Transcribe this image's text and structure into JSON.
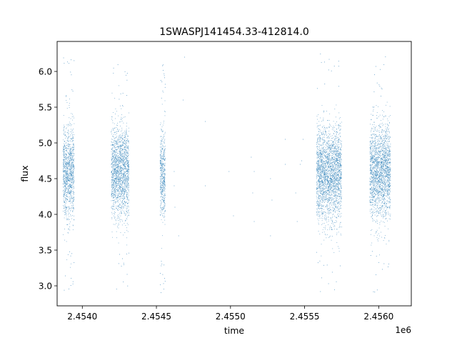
{
  "chart_data": {
    "type": "scatter",
    "title": "1SWASPJ141454.33-412814.0",
    "xlabel": "time",
    "ylabel": "flux",
    "x_offset_label": "1e6",
    "xlim": [
      2453830,
      2456220
    ],
    "ylim": [
      2.72,
      6.42
    ],
    "xticks": [
      2454000,
      2454500,
      2455000,
      2455500,
      2456000
    ],
    "xtick_labels": [
      "2.4540",
      "2.4545",
      "2.4550",
      "2.4555",
      "2.4560"
    ],
    "yticks": [
      3.0,
      3.5,
      4.0,
      4.5,
      5.0,
      5.5,
      6.0
    ],
    "ytick_labels": [
      "3.0",
      "3.5",
      "4.0",
      "4.5",
      "5.0",
      "5.5",
      "6.0"
    ],
    "grid": false,
    "marker_color": "#1f77b4",
    "observing_seasons": [
      {
        "x_start": 2453870,
        "x_end": 2453945,
        "flux_center": 4.6,
        "flux_spread": 0.32,
        "flux_min": 2.9,
        "flux_max": 6.2
      },
      {
        "x_start": 2454195,
        "x_end": 2454315,
        "flux_center": 4.6,
        "flux_spread": 0.32,
        "flux_min": 2.88,
        "flux_max": 6.1
      },
      {
        "x_start": 2454525,
        "x_end": 2454560,
        "flux_center": 4.55,
        "flux_spread": 0.32,
        "flux_min": 2.9,
        "flux_max": 6.1
      },
      {
        "x_start": 2455580,
        "x_end": 2455750,
        "flux_center": 4.55,
        "flux_spread": 0.33,
        "flux_min": 2.9,
        "flux_max": 6.25
      },
      {
        "x_start": 2455940,
        "x_end": 2456080,
        "flux_center": 4.6,
        "flux_spread": 0.33,
        "flux_min": 2.9,
        "flux_max": 6.25
      }
    ],
    "sparse_points": [
      {
        "x": 2454620,
        "y": 4.6
      },
      {
        "x": 2454620,
        "y": 4.4
      },
      {
        "x": 2454625,
        "y": 4.1
      },
      {
        "x": 2454680,
        "y": 5.6
      },
      {
        "x": 2454690,
        "y": 6.2
      },
      {
        "x": 2454650,
        "y": 3.7
      },
      {
        "x": 2454830,
        "y": 5.3
      },
      {
        "x": 2454830,
        "y": 4.4
      },
      {
        "x": 2454990,
        "y": 4.6
      },
      {
        "x": 2455020,
        "y": 3.98
      },
      {
        "x": 2455140,
        "y": 4.8
      },
      {
        "x": 2455150,
        "y": 4.3
      },
      {
        "x": 2455160,
        "y": 3.9
      },
      {
        "x": 2455160,
        "y": 4.6
      },
      {
        "x": 2455270,
        "y": 4.5
      },
      {
        "x": 2455270,
        "y": 3.7
      },
      {
        "x": 2455280,
        "y": 4.2
      },
      {
        "x": 2455370,
        "y": 4.7
      },
      {
        "x": 2455370,
        "y": 5.05
      },
      {
        "x": 2455440,
        "y": 4.3
      },
      {
        "x": 2455450,
        "y": 3.9
      },
      {
        "x": 2455470,
        "y": 4.7
      },
      {
        "x": 2455480,
        "y": 4.75
      },
      {
        "x": 2455490,
        "y": 5.05
      }
    ]
  }
}
